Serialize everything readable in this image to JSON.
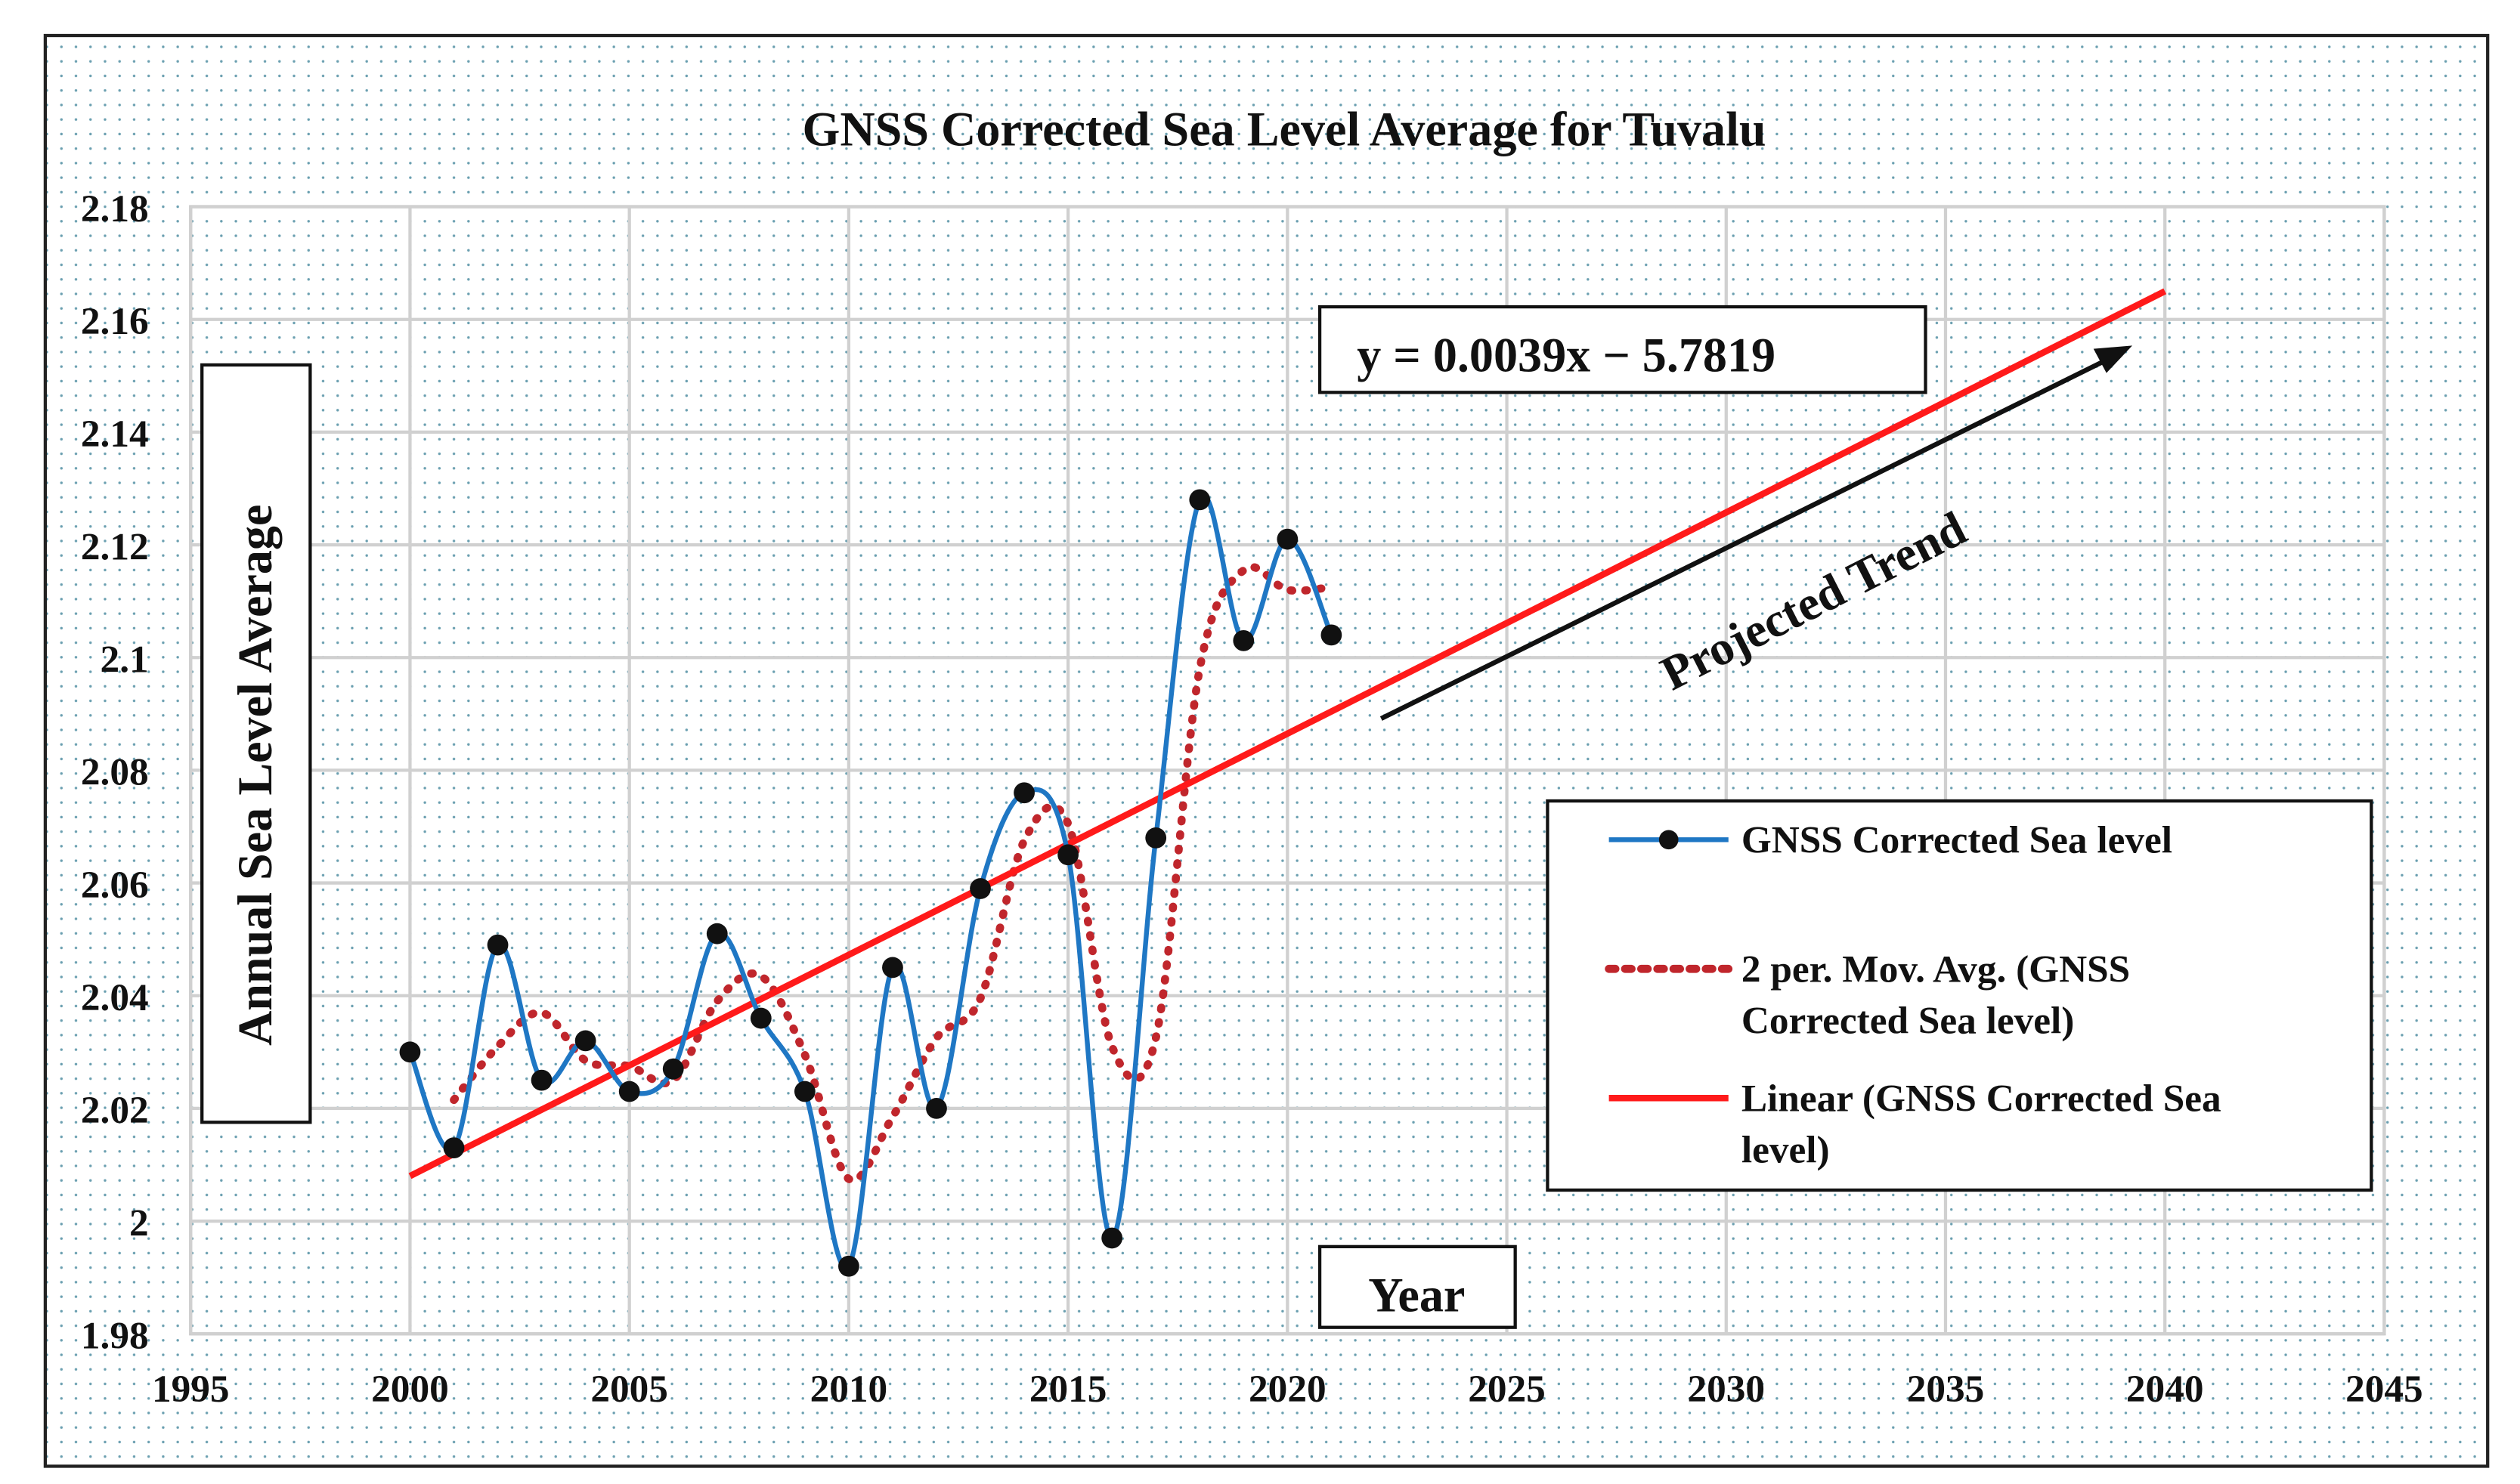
{
  "chart_data": {
    "type": "line",
    "title": "GNSS Corrected Sea Level Average for Tuvalu",
    "xlabel": "Year",
    "ylabel": "Annual Sea Level Average",
    "xlim": [
      1995,
      2045
    ],
    "ylim": [
      1.98,
      2.18
    ],
    "x_ticks": [
      "1995",
      "2000",
      "2005",
      "2010",
      "2015",
      "2020",
      "2025",
      "2030",
      "2035",
      "2040",
      "2045"
    ],
    "y_ticks": [
      "1.98",
      "2",
      "2.02",
      "2.04",
      "2.06",
      "2.08",
      "2.1",
      "2.12",
      "2.14",
      "2.16",
      "2.18"
    ],
    "grid": true,
    "legend_position": "right",
    "series": [
      {
        "name": "GNSS Corrected Sea level",
        "color": "#1f77c4",
        "x": [
          2000,
          2001,
          2002,
          2003,
          2004,
          2005,
          2006,
          2007,
          2008,
          2009,
          2010,
          2011,
          2012,
          2013,
          2014,
          2015,
          2016,
          2017,
          2018,
          2019,
          2020,
          2021
        ],
        "values": [
          2.03,
          2.013,
          2.049,
          2.025,
          2.032,
          2.023,
          2.027,
          2.051,
          2.036,
          2.023,
          1.992,
          2.045,
          2.02,
          2.059,
          2.076,
          2.065,
          1.997,
          2.068,
          2.128,
          2.103,
          2.121,
          2.104
        ]
      }
    ],
    "moving_average": {
      "name": "2 per. Mov. Avg. (GNSS Corrected Sea level)",
      "period": 2,
      "color": "#c0262c"
    },
    "trendline": {
      "name": "Linear (GNSS Corrected Sea level)",
      "color": "#ff1a1a",
      "x": [
        2000,
        2040
      ],
      "values": [
        2.008,
        2.165
      ]
    },
    "annotations": {
      "equation": "y = 0.0039x − 5.7819",
      "projected_trend": "Projected Trend"
    },
    "legend": [
      "GNSS Corrected Sea level",
      "2 per. Mov. Avg. (GNSS",
      "Corrected Sea level)",
      "Linear (GNSS Corrected Sea",
      "level)"
    ]
  }
}
